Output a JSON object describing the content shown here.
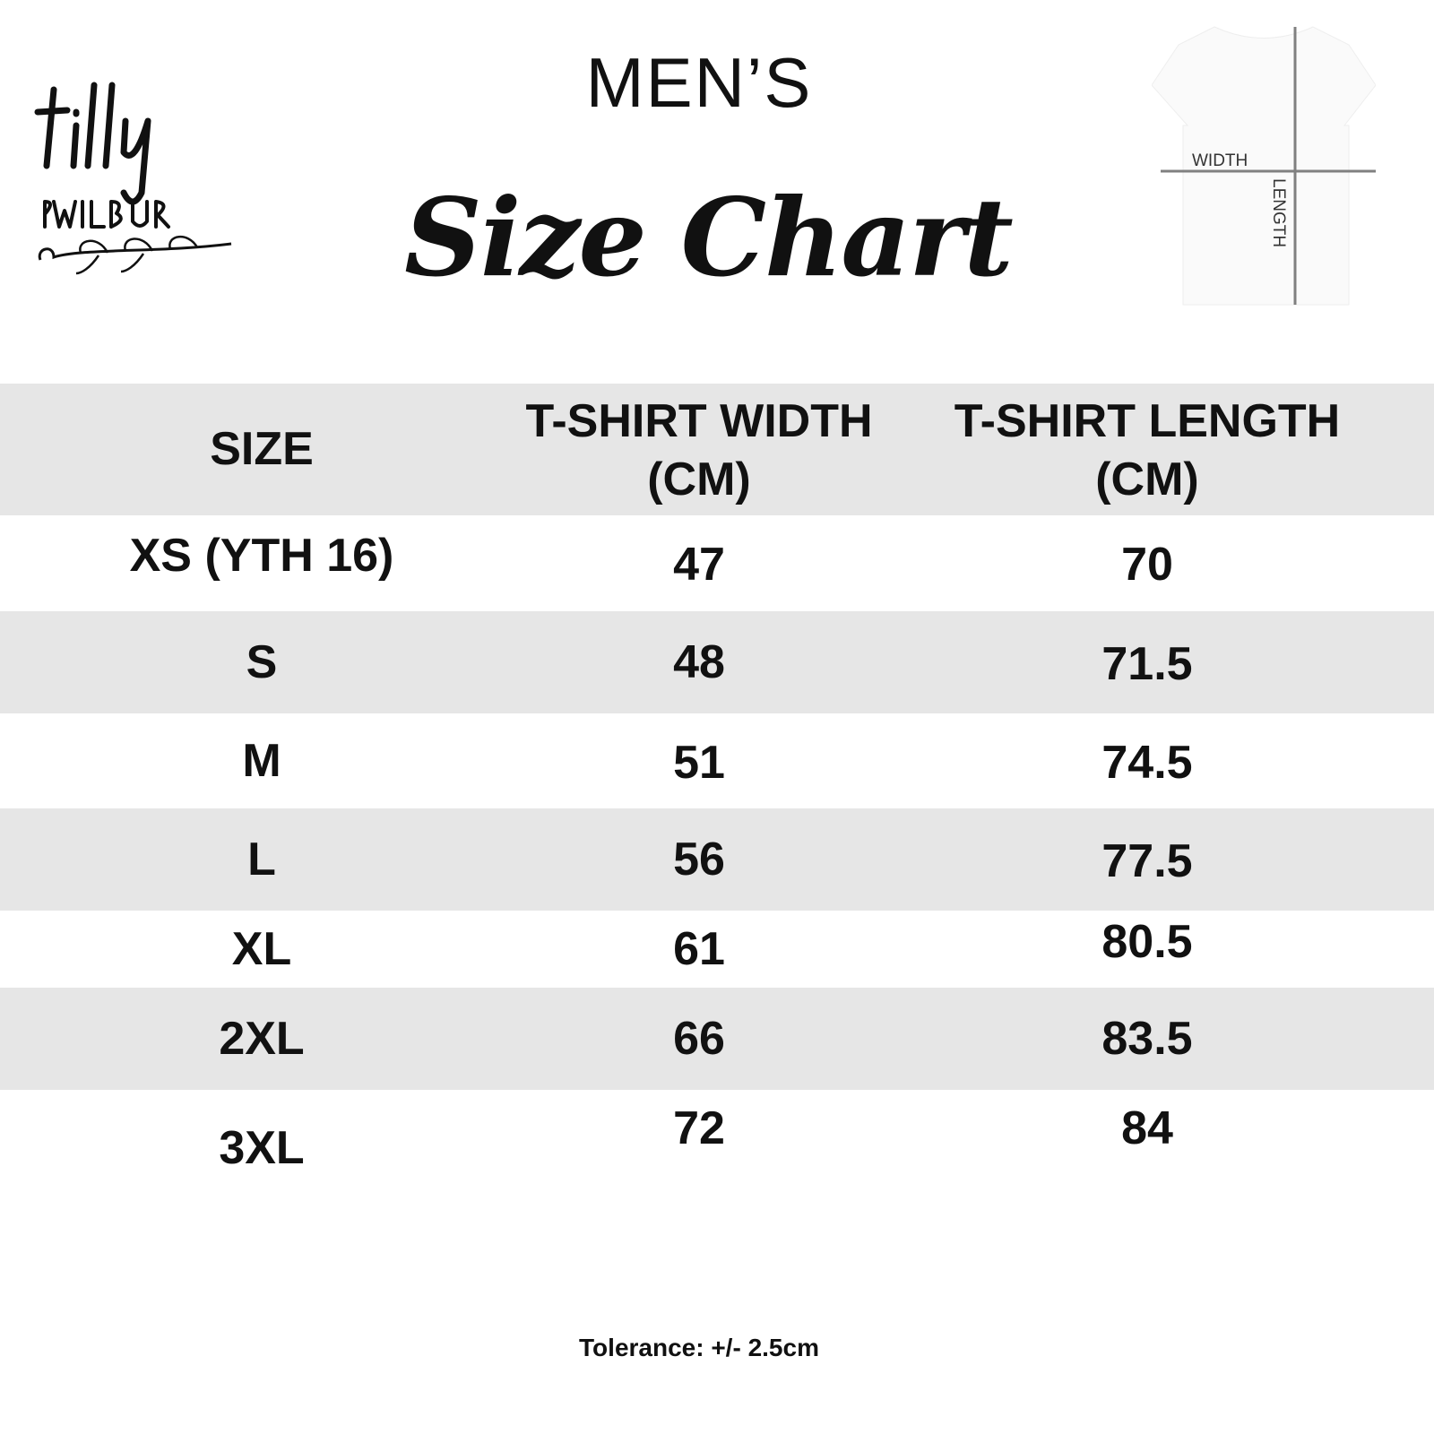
{
  "brand": {
    "logo_text": "tilly & WILBUR"
  },
  "heading": {
    "mens": "MEN’S",
    "title": "Size Chart"
  },
  "diagram": {
    "width_label": "WIDTH",
    "length_label": "LENGTH"
  },
  "table": {
    "headers": [
      "SIZE",
      "T-SHIRT WIDTH (CM)",
      "T-SHIRT LENGTH (CM)"
    ],
    "rows": [
      [
        "XS (YTH 16)",
        "47",
        "70"
      ],
      [
        "S",
        "48",
        "71.5"
      ],
      [
        "M",
        "51",
        "74.5"
      ],
      [
        "L",
        "56",
        "77.5"
      ],
      [
        "XL",
        "61",
        "80.5"
      ],
      [
        "2XL",
        "66",
        "83.5"
      ],
      [
        "3XL",
        "72",
        "84"
      ]
    ]
  },
  "footer": {
    "tolerance": "Tolerance: +/- 2.5cm"
  },
  "colors": {
    "band": "#e6e6e6",
    "text": "#111111",
    "diagram_line": "#808080"
  }
}
